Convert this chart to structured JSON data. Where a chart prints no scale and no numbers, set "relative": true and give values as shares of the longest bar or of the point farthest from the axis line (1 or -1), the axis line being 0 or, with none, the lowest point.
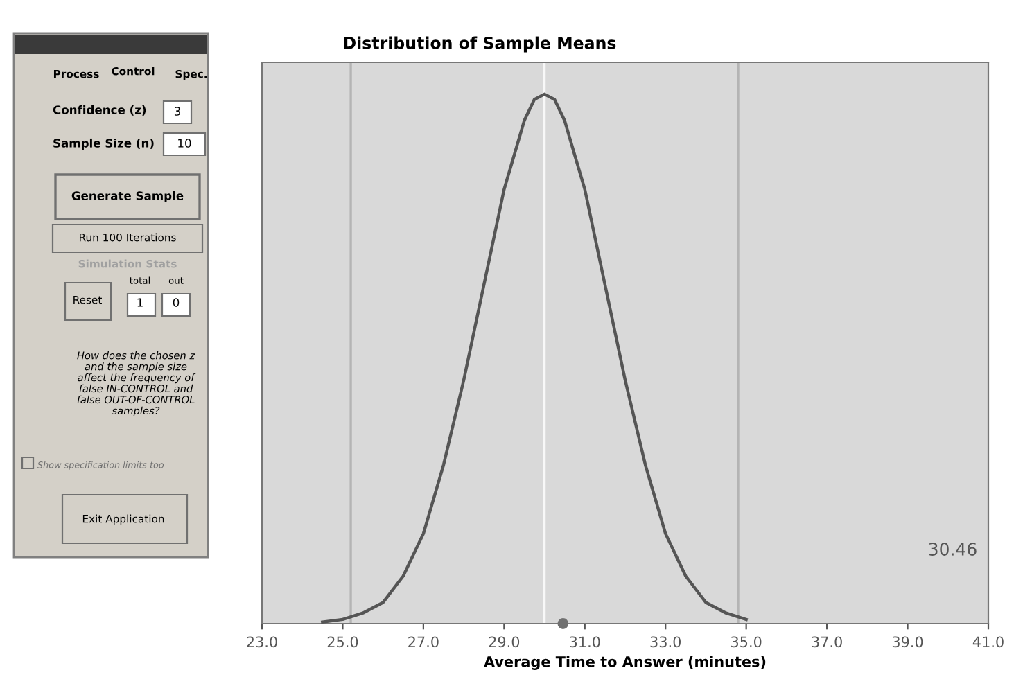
{
  "chart_data": [
    {
      "type": "other",
      "annotations": [
        "Process",
        "Control",
        "Spec.",
        "Confidence (z)",
        "3",
        "Sample Size (n)",
        "10",
        "Generate Sample",
        "Run 100 Iterations",
        "Simulation Stats",
        "Reset",
        "total",
        "out",
        "1",
        "0",
        "How does the chosen z\nand the sample size\naffect the frequency of\nfalse IN-CONTROL and\nfalse OUT-OF-CONTROL\nsamples?",
        "Show specification limits too",
        "Exit Application"
      ]
    },
    {
      "type": "line",
      "title": "Distribution of Sample Means",
      "xlabel": "Average Time to Answer (minutes)",
      "relative": true,
      "x": [
        24.5,
        25.0,
        25.5,
        26.0,
        26.5,
        27.0,
        27.5,
        28.0,
        28.5,
        29.0,
        29.5,
        29.75,
        30.0,
        30.25,
        30.5,
        31.0,
        31.5,
        32.0,
        32.5,
        33.0,
        33.5,
        34.0,
        34.5,
        35.0
      ],
      "series": [
        {
          "type": "line",
          "color": "#555555",
          "values": [
            0.003,
            0.008,
            0.02,
            0.04,
            0.09,
            0.17,
            0.3,
            0.46,
            0.64,
            0.82,
            0.95,
            0.99,
            1,
            0.99,
            0.95,
            0.82,
            0.64,
            0.46,
            0.3,
            0.17,
            0.09,
            0.04,
            0.02,
            0.008
          ]
        },
        {
          "type": "scatter",
          "color": "#707070",
          "x": [
            30.46
          ],
          "values": [
            0
          ],
          "marker": "circle"
        }
      ],
      "xlim": [
        23.0,
        41.0
      ],
      "xticks": [
        {
          "value": 23,
          "label": "23.0"
        },
        {
          "value": 25,
          "label": "25.0"
        },
        {
          "value": 27,
          "label": "27.0"
        },
        {
          "value": 29,
          "label": "29.0"
        },
        {
          "value": 31,
          "label": "31.0"
        },
        {
          "value": 33,
          "label": "33.0"
        },
        {
          "value": 35,
          "label": "35.0"
        },
        {
          "value": 37,
          "label": "37.0"
        },
        {
          "value": 39,
          "label": "39.0"
        },
        {
          "value": 41,
          "label": "41.0"
        }
      ],
      "ref_lines": [
        {
          "axis": "x",
          "value": 25.2,
          "color": "#b4b4b4"
        },
        {
          "axis": "x",
          "value": 30.0,
          "color": "#f8f8f8"
        },
        {
          "axis": "x",
          "value": 34.8,
          "color": "#b4b4b4"
        }
      ],
      "annotations": [
        "30.46"
      ],
      "tick_labels": "x",
      "grid": false,
      "legend": false,
      "line_style": "solid",
      "marker": "none"
    }
  ]
}
